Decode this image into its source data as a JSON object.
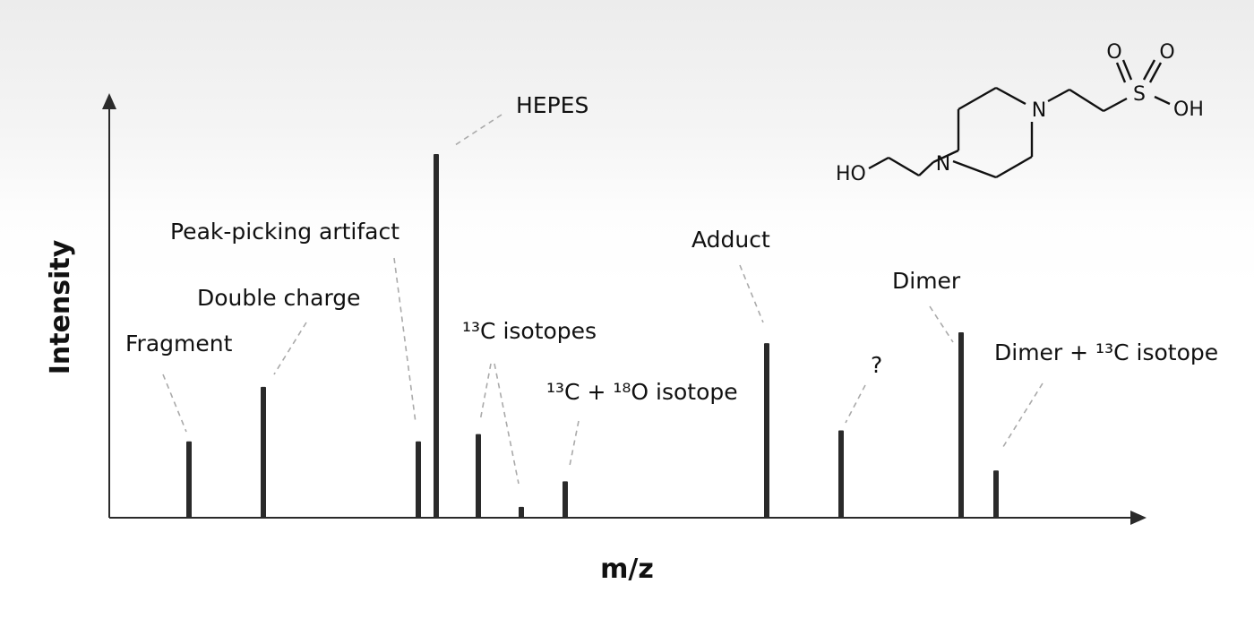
{
  "chart_data": {
    "type": "bar",
    "xlabel": "m/z",
    "ylabel": "Intensity",
    "ylim": [
      0,
      100
    ],
    "grid": false,
    "peaks": [
      {
        "x": 211,
        "y": 21,
        "label": "Fragment"
      },
      {
        "x": 294,
        "y": 36,
        "label": "Double charge"
      },
      {
        "x": 467,
        "y": 21,
        "label": "Peak-picking artifact"
      },
      {
        "x": 487,
        "y": 100,
        "label": "HEPES"
      },
      {
        "x": 534,
        "y": 23,
        "label": "¹³C isotopes"
      },
      {
        "x": 582,
        "y": 3,
        "label": "¹³C isotopes"
      },
      {
        "x": 631,
        "y": 10,
        "label": "¹³C + ¹⁸O isotope"
      },
      {
        "x": 856,
        "y": 48,
        "label": "Adduct"
      },
      {
        "x": 939,
        "y": 24,
        "label": "?"
      },
      {
        "x": 1073,
        "y": 51,
        "label": "Dimer"
      },
      {
        "x": 1112,
        "y": 13,
        "label": "Dimer + ¹³C isotope"
      }
    ],
    "annotations": [
      {
        "key": "fragment",
        "text": "Fragment"
      },
      {
        "key": "double_charge",
        "text": "Double charge"
      },
      {
        "key": "artifact",
        "text": "Peak-picking artifact"
      },
      {
        "key": "hepes",
        "text": "HEPES"
      },
      {
        "key": "c13",
        "text": "¹³C isotopes"
      },
      {
        "key": "c13o18",
        "text": "¹³C + ¹⁸O isotope"
      },
      {
        "key": "adduct",
        "text": "Adduct"
      },
      {
        "key": "unknown",
        "text": "?"
      },
      {
        "key": "dimer",
        "text": "Dimer"
      },
      {
        "key": "dimer_c13",
        "text": "Dimer + ¹³C isotope"
      }
    ]
  },
  "structure": {
    "atoms": {
      "n_top": "N",
      "n_bottom": "N",
      "s": "S",
      "o1": "O",
      "o2": "O",
      "oh_right": "OH",
      "ho_left": "HO"
    }
  }
}
